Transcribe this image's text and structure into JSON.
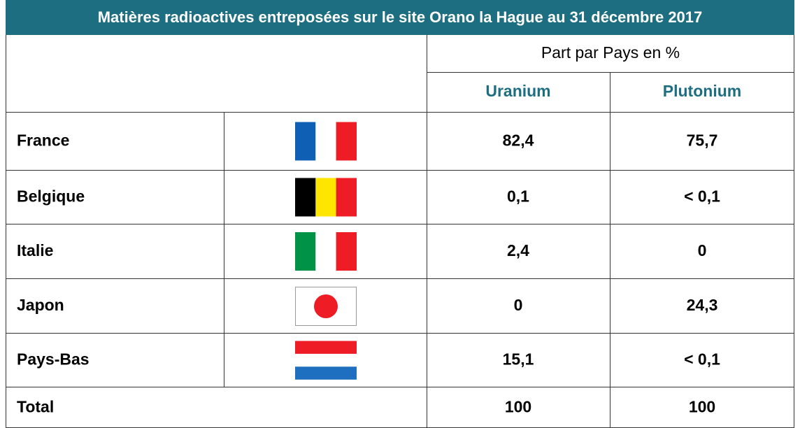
{
  "title": "Matières radioactives entreposées sur le site Orano la Hague au 31 décembre 2017",
  "table": {
    "group_header": "Part par Pays en %",
    "columns": [
      "Uranium",
      "Plutonium"
    ],
    "rows": [
      {
        "country": "France",
        "uranium": "82,4",
        "plutonium": "75,7"
      },
      {
        "country": "Belgique",
        "uranium": "0,1",
        "plutonium": "< 0,1"
      },
      {
        "country": "Italie",
        "uranium": "2,4",
        "plutonium": "0"
      },
      {
        "country": "Japon",
        "uranium": "0",
        "plutonium": "24,3"
      },
      {
        "country": "Pays-Bas",
        "uranium": "15,1",
        "plutonium": "< 0,1"
      }
    ],
    "total": {
      "label": "Total",
      "uranium": "100",
      "plutonium": "100"
    }
  }
}
